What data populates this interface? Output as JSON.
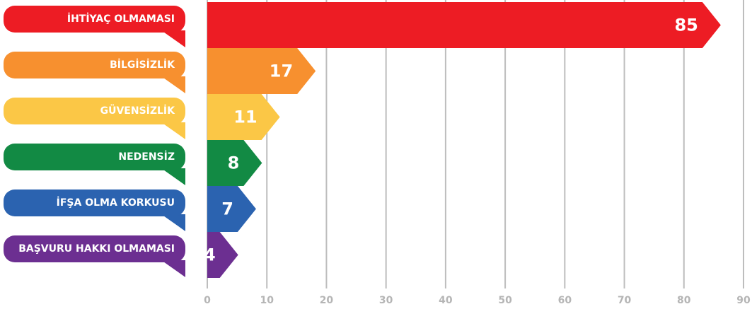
{
  "chart_data": {
    "type": "bar",
    "orientation": "horizontal",
    "categories": [
      "İHTİYAÇ OLMAMASI",
      "BİLGİSİZLİK",
      "GÜVENSİZLİK",
      "NEDENSİZ",
      "İFŞA OLMA KORKUSU",
      "BAŞVURU HAKKI OLMAMASI"
    ],
    "values": [
      85,
      17,
      11,
      8,
      7,
      4
    ],
    "colors": [
      "#ed1c24",
      "#f7902f",
      "#fbc746",
      "#128a44",
      "#2b63b0",
      "#6c2f91"
    ],
    "xlim": [
      0,
      90
    ],
    "xticks": [
      0,
      10,
      20,
      30,
      40,
      50,
      60,
      70,
      80,
      90
    ],
    "grid": true
  }
}
